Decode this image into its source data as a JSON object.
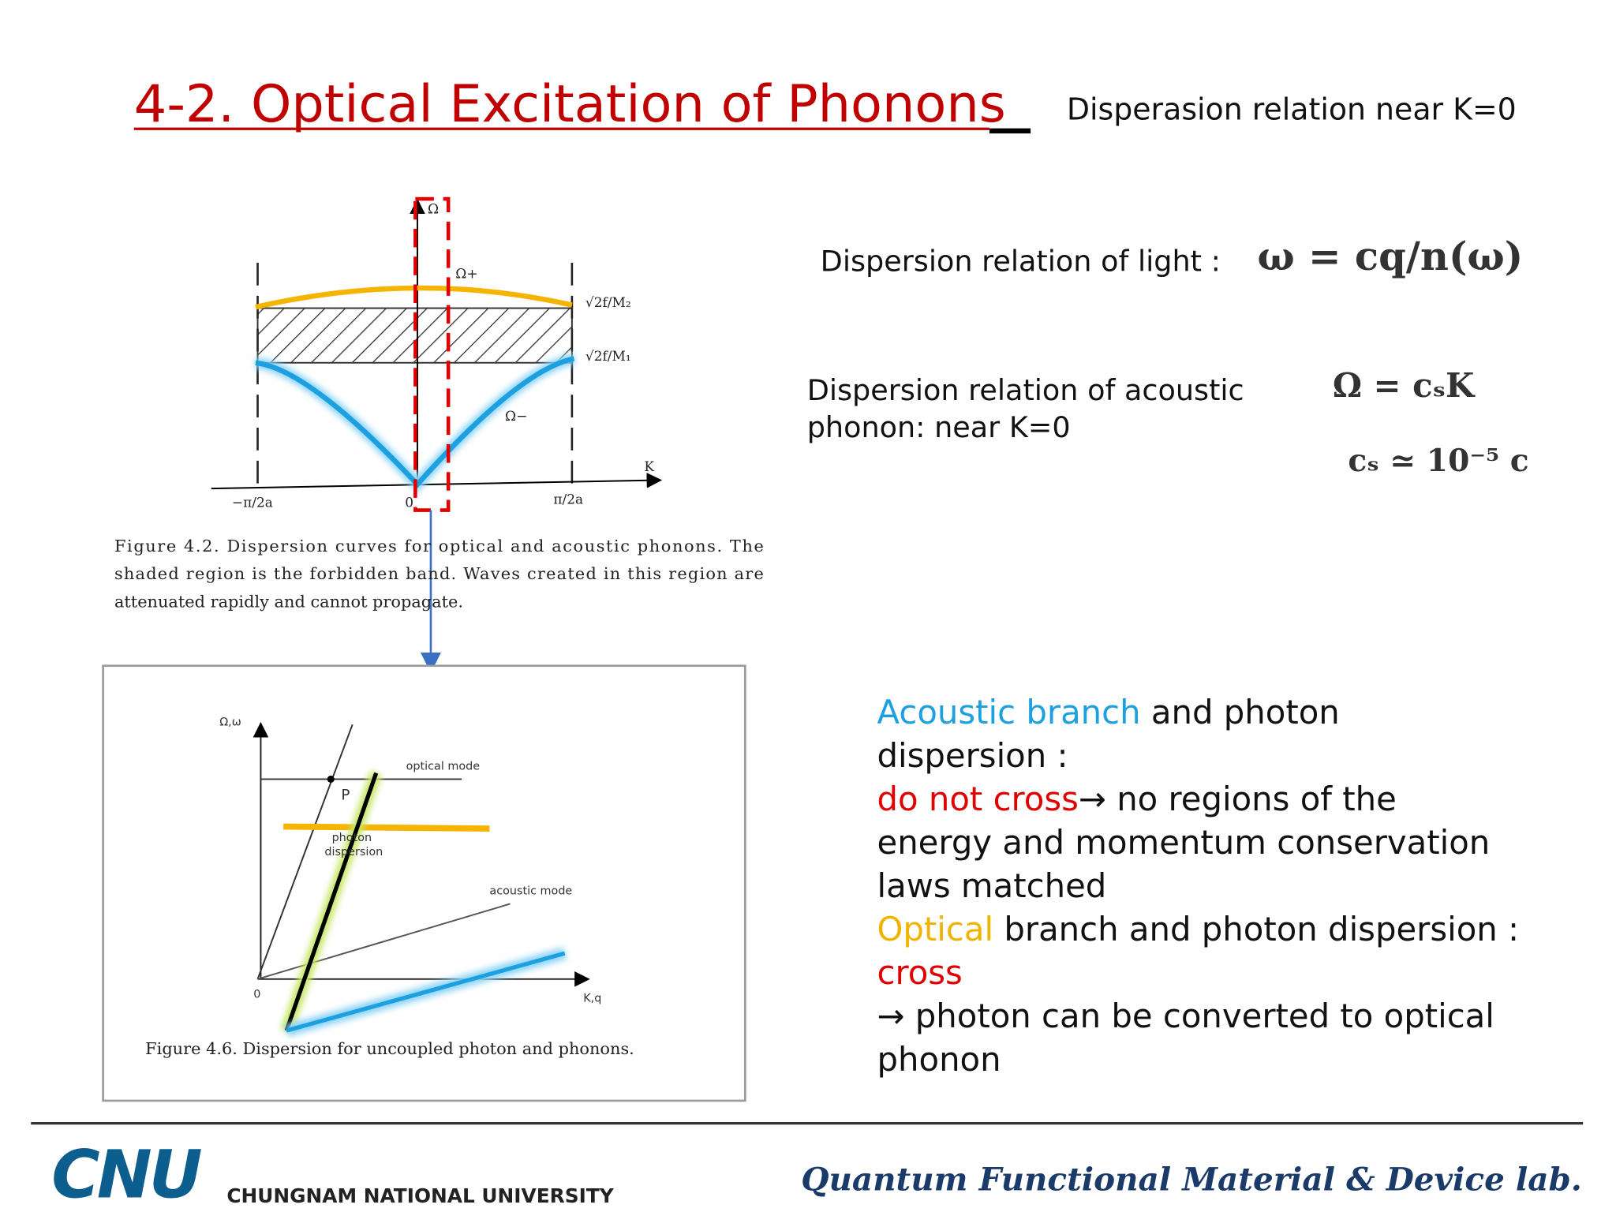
{
  "header": {
    "title": "4-2. Optical Excitation of Phonons",
    "subtitle": "Disperasion relation near K=0"
  },
  "figure_1": {
    "labels": {
      "omega": "Ω",
      "omega_plus": "Ω+",
      "omega_minus": "Ω−",
      "upper": "√2f/M₂",
      "lower": "√2f/M₁",
      "k": "K",
      "left": "−π/2a",
      "zero": "0",
      "right": "π/2a"
    },
    "caption": [
      "Figure 4.2. Dispersion curves for optical and acoustic phonons. The",
      "shaded region is the forbidden band. Waves created in this region are",
      "attenuated rapidly and cannot propagate."
    ]
  },
  "figure_2": {
    "labels": {
      "axis_y": "Ω,ω",
      "optical": "optical mode",
      "point": "P",
      "photon": [
        "photon",
        "dispersion"
      ],
      "acoustic": "acoustic mode",
      "zero": "0",
      "axis_x": "K,q"
    },
    "caption": "Figure 4.6. Dispersion for uncoupled photon and phonons."
  },
  "equations": {
    "light_label": "Dispersion relation of light :",
    "light_formula": "ω = cq/n(ω)",
    "acoustic_label": [
      "Dispersion relation of acoustic",
      "phonon: near K=0"
    ],
    "acoustic_formula": "Ω = cₛK",
    "sound_speed": "cₛ ≃ 10⁻⁵ c"
  },
  "notes": {
    "lines": [
      [
        {
          "text": "Acoustic branch",
          "color": "#1ca0e0"
        },
        {
          "text": " and photon",
          "color": "#111111"
        }
      ],
      [
        {
          "text": "dispersion :",
          "color": "#111111"
        }
      ],
      [
        {
          "text": "do not cross",
          "color": "#e00000"
        },
        {
          "text": "→ no regions of the",
          "color": "#111111"
        }
      ],
      [
        {
          "text": "energy and momentum conservation",
          "color": "#111111"
        }
      ],
      [
        {
          "text": "laws matched",
          "color": "#111111"
        }
      ],
      [
        {
          "text": "Optical",
          "color": "#f0b400"
        },
        {
          "text": " branch and photon dispersion :",
          "color": "#111111"
        }
      ],
      [
        {
          "text": "cross",
          "color": "#e00000"
        }
      ],
      [
        {
          "text": "→ photon can be converted to optical",
          "color": "#111111"
        }
      ],
      [
        {
          "text": "phonon",
          "color": "#111111"
        }
      ]
    ]
  },
  "footer": {
    "logo": "CNU",
    "university": "CHUNGNAM NATIONAL UNIVERSITY",
    "lab": "Quantum Functional Material & Device lab."
  }
}
